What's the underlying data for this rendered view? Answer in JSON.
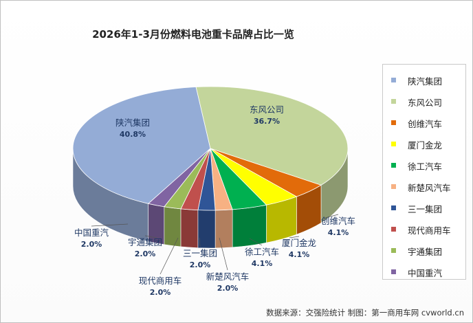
{
  "title": "2026年1-3月份燃料电池重卡品牌占比一览",
  "source": "数据来源：交强险统计 制图：第一商用车网 cvworld.cn",
  "chart_data": {
    "type": "pie",
    "title": "2026年1-3月份燃料电池重卡品牌占比一览",
    "three_d": true,
    "legend_position": "right",
    "slices": [
      {
        "name": "陕汽集团",
        "value": 40.8,
        "label": "40.8%",
        "color": "#94ACD6"
      },
      {
        "name": "东风公司",
        "value": 36.7,
        "label": "36.7%",
        "color": "#C3D59B"
      },
      {
        "name": "创维汽车",
        "value": 4.1,
        "label": "4.1%",
        "color": "#E26B0A"
      },
      {
        "name": "厦门金龙",
        "value": 4.1,
        "label": "4.1%",
        "color": "#FFFF00"
      },
      {
        "name": "徐工汽车",
        "value": 4.1,
        "label": "4.1%",
        "color": "#00B050"
      },
      {
        "name": "新楚风汽车",
        "value": 2.0,
        "label": "2.0%",
        "color": "#F7B183"
      },
      {
        "name": "三一集团",
        "value": 2.0,
        "label": "2.0%",
        "color": "#2F5597"
      },
      {
        "name": "现代商用车",
        "value": 2.0,
        "label": "2.0%",
        "color": "#C0504D"
      },
      {
        "name": "宇通集团",
        "value": 2.0,
        "label": "2.0%",
        "color": "#9BBB59"
      },
      {
        "name": "中国重汽",
        "value": 2.0,
        "label": "2.0%",
        "color": "#8064A2"
      }
    ]
  }
}
